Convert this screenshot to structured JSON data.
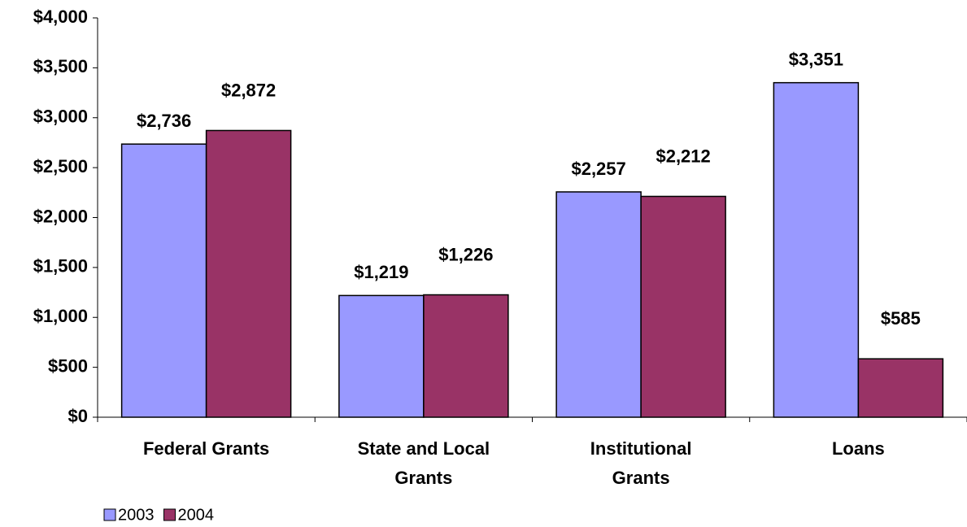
{
  "chart_data": {
    "type": "bar",
    "categories": [
      "Federal Grants",
      "State and Local Grants",
      "Institutional Grants",
      "Loans"
    ],
    "series": [
      {
        "name": "2003",
        "color": "#9999ff",
        "values": [
          2736,
          1219,
          2257,
          3351
        ],
        "value_labels": [
          "$2,736",
          "$1,219",
          "$2,257",
          "$3,351"
        ]
      },
      {
        "name": "2004",
        "color": "#993366",
        "values": [
          2872,
          1226,
          2212,
          585
        ],
        "value_labels": [
          "$2,872",
          "$1,226",
          "$2,212",
          "$585"
        ]
      }
    ],
    "ylim": [
      0,
      4000
    ],
    "yticks": [
      {
        "value": 0,
        "label": "$0"
      },
      {
        "value": 500,
        "label": "$500"
      },
      {
        "value": 1000,
        "label": "$1,000"
      },
      {
        "value": 1500,
        "label": "$1,500"
      },
      {
        "value": 2000,
        "label": "$2,000"
      },
      {
        "value": 2500,
        "label": "$2,500"
      },
      {
        "value": 3000,
        "label": "$3,000"
      },
      {
        "value": 3500,
        "label": "$3,500"
      },
      {
        "value": 4000,
        "label": "$4,000"
      }
    ],
    "grid": false,
    "legend": "bottom-left"
  }
}
